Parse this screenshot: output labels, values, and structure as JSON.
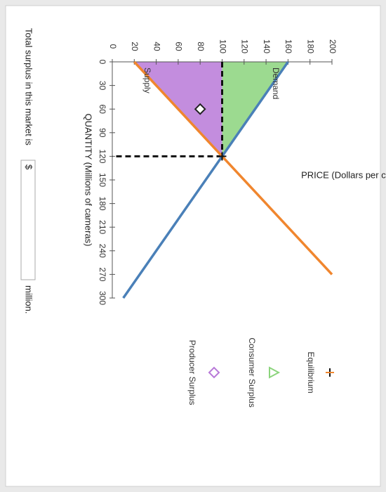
{
  "chart_data": {
    "type": "supply_demand",
    "xlabel": "QUANTITY (Millions of cameras)",
    "ylabel": "PRICE (Dollars per camera)",
    "xlim": [
      0,
      300
    ],
    "ylim": [
      0,
      200
    ],
    "xticks": [
      0,
      30,
      60,
      90,
      120,
      150,
      180,
      210,
      240,
      270,
      300
    ],
    "yticks": [
      0,
      20,
      40,
      60,
      80,
      100,
      120,
      140,
      160,
      180,
      200
    ],
    "series": [
      {
        "name": "Demand",
        "color": "#4a80b8",
        "x": [
          0,
          300
        ],
        "values": [
          160,
          10
        ]
      },
      {
        "name": "Supply",
        "color": "#f0862e",
        "x": [
          0,
          270
        ],
        "values": [
          20,
          200
        ]
      }
    ],
    "equilibrium": {
      "name": "Equilibrium",
      "x": 120,
      "value": 100
    },
    "areas": [
      {
        "name": "Consumer Surplus",
        "color": "#8bd47c",
        "marker": "triangle",
        "x": [
          0,
          0,
          120
        ],
        "values": [
          160,
          100,
          100
        ]
      },
      {
        "name": "Producer Surplus",
        "color": "#b879d8",
        "marker": "diamond",
        "x": [
          0,
          0,
          120
        ],
        "values": [
          100,
          20,
          100
        ],
        "marker_x": 60,
        "marker_value": 80
      }
    ]
  },
  "question": {
    "prefix": "Total surplus in this market is",
    "currency": "$",
    "suffix": "million."
  }
}
